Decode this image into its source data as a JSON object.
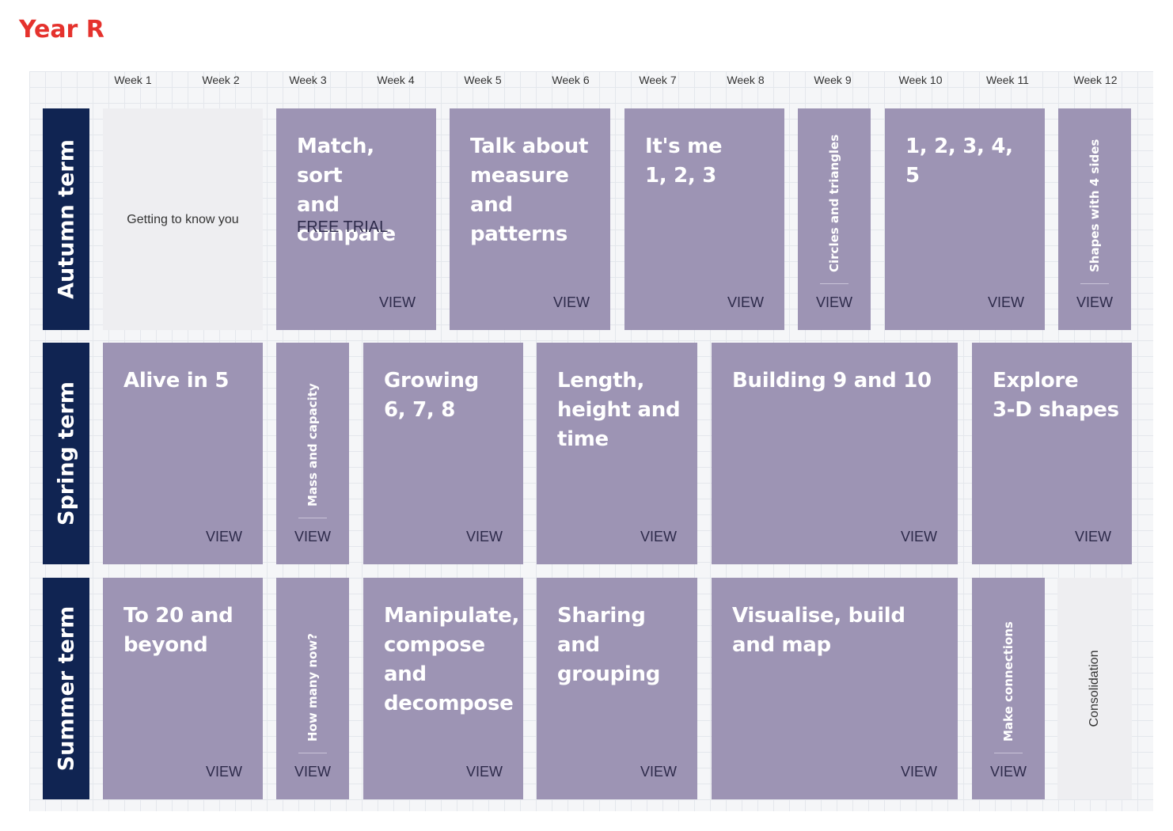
{
  "page_title": "Year R",
  "weeks": [
    "Week 1",
    "Week 2",
    "Week 3",
    "Week 4",
    "Week 5",
    "Week 6",
    "Week 7",
    "Week 8",
    "Week 9",
    "Week 10",
    "Week 11",
    "Week 12"
  ],
  "view_label": "VIEW",
  "terms": [
    {
      "label": "Autumn term",
      "blocks": [
        {
          "kind": "grey",
          "text": "Getting to know you"
        },
        {
          "kind": "block",
          "lines": [
            "Match, sort",
            "and",
            "compare"
          ],
          "sub": "FREE TRIAL"
        },
        {
          "kind": "block",
          "lines": [
            "Talk about",
            "measure",
            "and",
            "patterns"
          ]
        },
        {
          "kind": "block",
          "lines": [
            "It's me",
            "1, 2, 3"
          ]
        },
        {
          "kind": "narrow",
          "text": "Circles and triangles"
        },
        {
          "kind": "block",
          "lines": [
            "1, 2, 3, 4, 5"
          ]
        },
        {
          "kind": "narrow",
          "text": "Shapes with 4 sides"
        }
      ]
    },
    {
      "label": "Spring term",
      "blocks": [
        {
          "kind": "block",
          "lines": [
            "Alive in 5"
          ]
        },
        {
          "kind": "narrow",
          "text": "Mass and capacity"
        },
        {
          "kind": "block",
          "lines": [
            "Growing",
            "6, 7, 8"
          ]
        },
        {
          "kind": "block",
          "lines": [
            "Length,",
            "height and",
            "time"
          ]
        },
        {
          "kind": "block",
          "lines": [
            "Building 9 and 10"
          ]
        },
        {
          "kind": "block",
          "lines": [
            "Explore",
            "3-D shapes"
          ]
        }
      ]
    },
    {
      "label": "Summer term",
      "blocks": [
        {
          "kind": "block",
          "lines": [
            "To 20 and",
            "beyond"
          ]
        },
        {
          "kind": "narrow",
          "text": "How many now?"
        },
        {
          "kind": "block",
          "lines": [
            "Manipulate,",
            "compose",
            "and",
            "decompose"
          ]
        },
        {
          "kind": "block",
          "lines": [
            "Sharing and",
            "grouping"
          ]
        },
        {
          "kind": "block",
          "lines": [
            "Visualise, build",
            "and map"
          ]
        },
        {
          "kind": "narrow",
          "text": "Make connections"
        },
        {
          "kind": "grey-vertical",
          "text": "Consolidation"
        }
      ]
    }
  ],
  "colors": {
    "title_red": "#e5322d",
    "term_navy": "#102452",
    "block_purple": "#9d94b4",
    "block_grey": "#eeeef1"
  }
}
